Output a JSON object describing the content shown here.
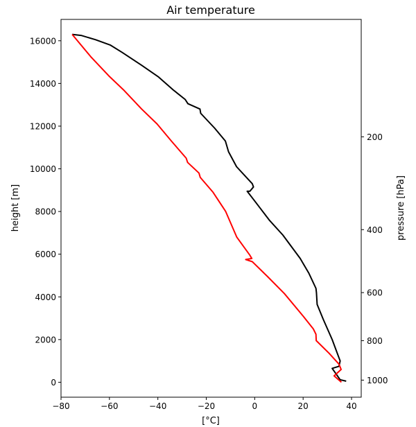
{
  "chart_data": {
    "type": "line",
    "title": "Air temperature",
    "xlabel": "[°C]",
    "ylabel": "height [m]",
    "y2label": "pressure [hPa]",
    "xlim": [
      -80,
      44
    ],
    "ylim": [
      -700,
      17000
    ],
    "xticks": [
      -80,
      -60,
      -40,
      -20,
      0,
      20,
      40
    ],
    "xtick_labels": [
      "−80",
      "−60",
      "−40",
      "−20",
      "0",
      "20",
      "40"
    ],
    "yticks": [
      0,
      2000,
      4000,
      6000,
      8000,
      10000,
      12000,
      14000,
      16000
    ],
    "ytick_labels": [
      "0",
      "2000",
      "4000",
      "6000",
      "8000",
      "10000",
      "12000",
      "14000",
      "16000"
    ],
    "y2ticks": [
      1000,
      800,
      600,
      400,
      200
    ],
    "y2tick_labels": [
      "1000",
      "800",
      "600",
      "400",
      "200"
    ],
    "y2_positions_m": [
      100,
      1950,
      4200,
      7150,
      11500
    ],
    "grid": false,
    "series": [
      {
        "color": "#000000",
        "points": [
          [
            37.8,
            50
          ],
          [
            35.3,
            120
          ],
          [
            32.0,
            650
          ],
          [
            34.8,
            750
          ],
          [
            35.3,
            1000
          ],
          [
            32.0,
            2000
          ],
          [
            28.3,
            2950
          ],
          [
            25.8,
            3650
          ],
          [
            25.5,
            4200
          ],
          [
            25.3,
            4400
          ],
          [
            22.4,
            5100
          ],
          [
            18.8,
            5800
          ],
          [
            11.6,
            6900
          ],
          [
            6.0,
            7600
          ],
          [
            0.3,
            8450
          ],
          [
            -3.1,
            8950
          ],
          [
            -2.0,
            8950
          ],
          [
            -0.5,
            9150
          ],
          [
            -1.0,
            9300
          ],
          [
            -7.5,
            10100
          ],
          [
            -10.8,
            10800
          ],
          [
            -12.1,
            11300
          ],
          [
            -16.5,
            11900
          ],
          [
            -22.3,
            12600
          ],
          [
            -22.6,
            12800
          ],
          [
            -27.6,
            13050
          ],
          [
            -28.7,
            13250
          ],
          [
            -33.7,
            13700
          ],
          [
            -39.7,
            14300
          ],
          [
            -46.7,
            14850
          ],
          [
            -54.7,
            15450
          ],
          [
            -59.7,
            15800
          ],
          [
            -65.7,
            16050
          ],
          [
            -71.7,
            16250
          ],
          [
            -75.4,
            16300
          ]
        ]
      },
      {
        "color": "#ff0000",
        "points": [
          [
            35.8,
            0
          ],
          [
            32.8,
            300
          ],
          [
            35.7,
            600
          ],
          [
            34.8,
            850
          ],
          [
            30.8,
            1350
          ],
          [
            25.4,
            1950
          ],
          [
            25.3,
            2250
          ],
          [
            24.2,
            2500
          ],
          [
            20.0,
            3100
          ],
          [
            12.3,
            4150
          ],
          [
            5.3,
            4950
          ],
          [
            -1.0,
            5650
          ],
          [
            -3.7,
            5750
          ],
          [
            -1.2,
            5800
          ],
          [
            -2.0,
            5950
          ],
          [
            -7.4,
            6800
          ],
          [
            -12.0,
            8000
          ],
          [
            -17.2,
            8900
          ],
          [
            -22.5,
            9600
          ],
          [
            -23.0,
            9800
          ],
          [
            -27.7,
            10300
          ],
          [
            -28.3,
            10500
          ],
          [
            -34.4,
            11300
          ],
          [
            -40.3,
            12100
          ],
          [
            -46.7,
            12800
          ],
          [
            -54.2,
            13700
          ],
          [
            -60.2,
            14350
          ],
          [
            -67.7,
            15250
          ],
          [
            -75.4,
            16300
          ]
        ]
      }
    ]
  }
}
